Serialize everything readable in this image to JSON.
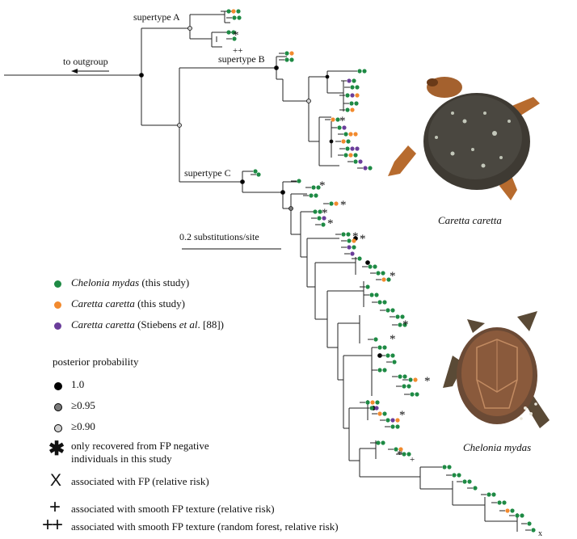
{
  "colors": {
    "chelonia": "#1e8a44",
    "caretta_this": "#f28a2e",
    "caretta_stiebens": "#6a3d9a",
    "pp_1": "#000000",
    "pp_095": "#7a7a7a",
    "pp_090": "#d0d0d0"
  },
  "tree": {
    "supertype_a": "supertype A",
    "supertype_b": "supertype B",
    "supertype_c": "supertype C",
    "outgroup": "to outgroup",
    "scale": "0.2 substitutions/site"
  },
  "species": {
    "caretta": "Caretta caretta",
    "chelonia": "Chelonia mydas"
  },
  "legend": {
    "item1_species": "Chelonia mydas",
    "item1_suffix": " (this study)",
    "item2_species": "Caretta caretta",
    "item2_suffix": " (this study)",
    "item3_species": "Caretta caretta",
    "item3_mid": " (Stiebens ",
    "item3_etal": "et al",
    "item3_end": ". [88])",
    "pp_title": "posterior probability",
    "pp1": "1.0",
    "pp095": "≥0.95",
    "pp090": "≥0.90",
    "neg_line1": "only recovered from FP negative",
    "neg_line2": "individuals in this study",
    "x_text": "associated with FP (relative risk)",
    "plus_text": "associated with smooth FP texture (relative risk)",
    "plusplus_text": "associated with smooth FP texture (random forest, relative risk)",
    "sym_star": "✱",
    "sym_x": "X",
    "sym_plus": "+",
    "sym_plusplus": "++"
  },
  "markers": {
    "star": "*",
    "plus": "+",
    "plusplus": "++",
    "x": "x"
  }
}
